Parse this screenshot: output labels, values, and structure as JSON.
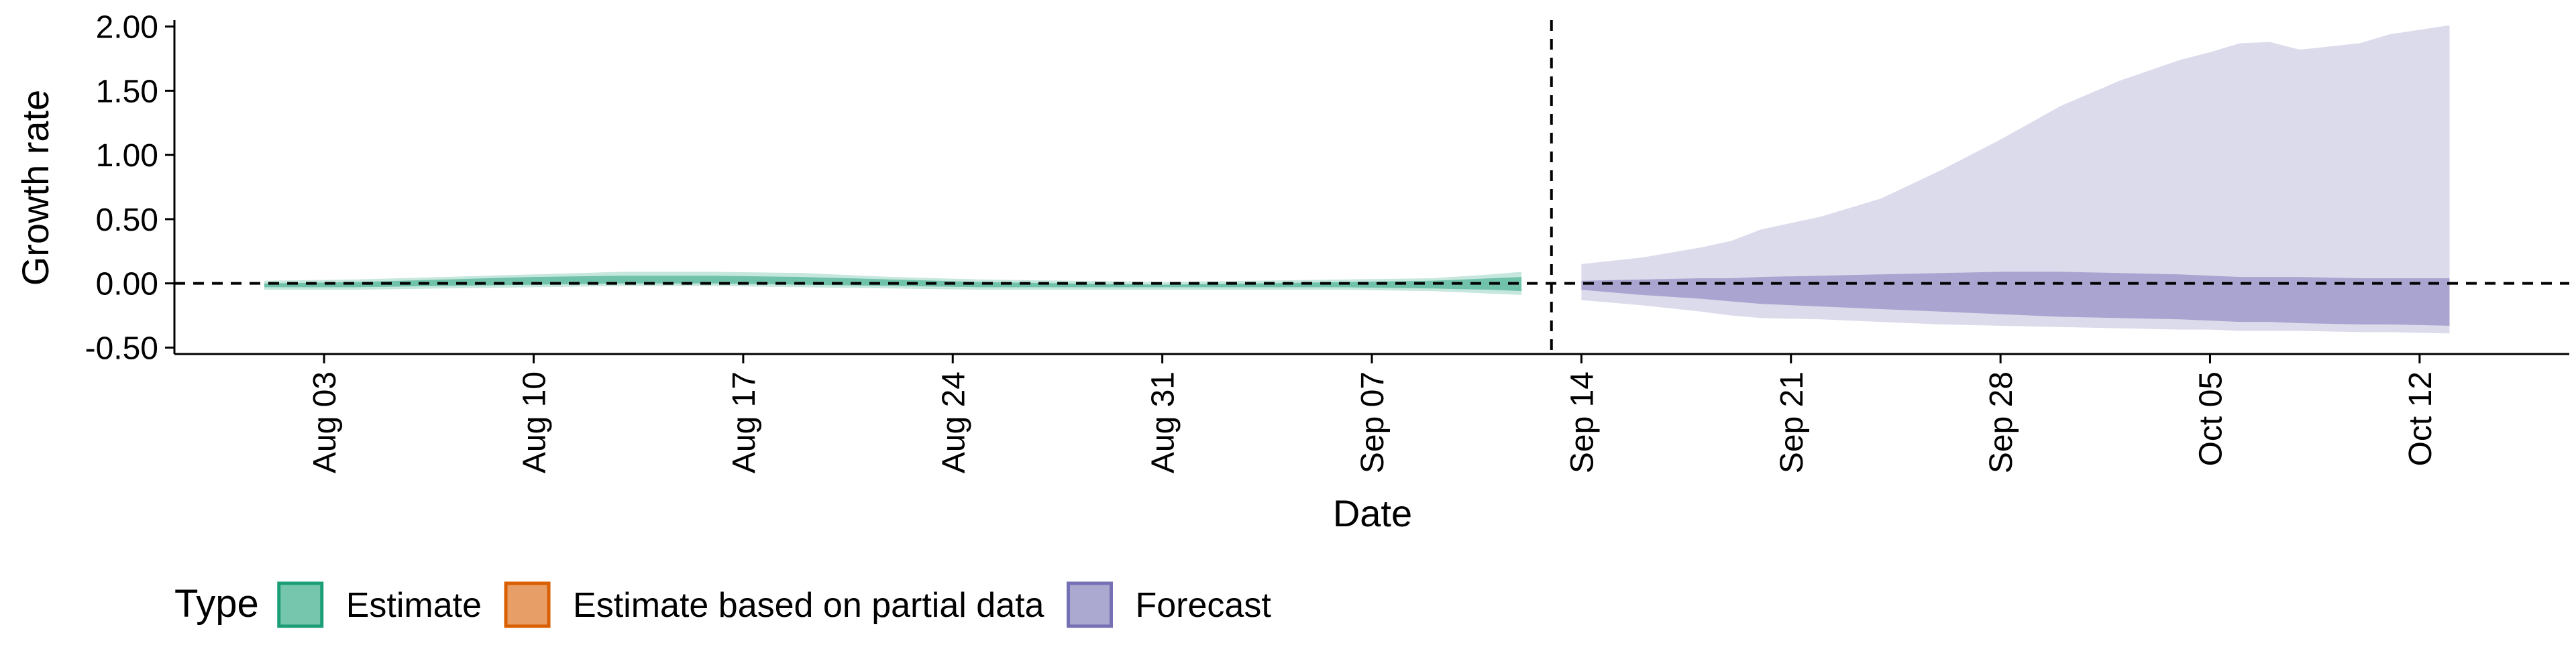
{
  "chart_data": {
    "type": "area",
    "xlabel": "Date",
    "ylabel": "Growth rate",
    "ylim": [
      -0.5,
      2.0
    ],
    "y_ticks": [
      -0.5,
      0.0,
      0.5,
      1.0,
      1.5,
      2.0
    ],
    "y_tick_labels": [
      "-0.50",
      "0.00",
      "0.50",
      "1.00",
      "1.50",
      "2.00"
    ],
    "x_range": [
      "2020-07-29",
      "2020-10-17"
    ],
    "x_ticks": [
      "2020-08-03",
      "2020-08-10",
      "2020-08-17",
      "2020-08-24",
      "2020-08-31",
      "2020-09-07",
      "2020-09-14",
      "2020-09-21",
      "2020-09-28",
      "2020-10-05",
      "2020-10-12"
    ],
    "x_tick_labels": [
      "Aug 03",
      "Aug 10",
      "Aug 17",
      "Aug 24",
      "Aug 31",
      "Sep 07",
      "Sep 14",
      "Sep 21",
      "Sep 28",
      "Oct 05",
      "Oct 12"
    ],
    "reference_lines": {
      "horizontal_y": 0.0,
      "vertical_date": "2020-09-13",
      "style": "dashed"
    },
    "grid": false,
    "legend": {
      "title": "Type",
      "position": "bottom",
      "items": [
        {
          "label": "Estimate",
          "fill": "#1b9e77",
          "border": "#1b9e77"
        },
        {
          "label": "Estimate based on partial data",
          "fill": "#d95f02",
          "border": "#d95f02"
        },
        {
          "label": "Forecast",
          "fill": "#7570b3",
          "border": "#7570b3"
        }
      ]
    },
    "series": [
      {
        "name": "Estimate",
        "color": "#1b9e77",
        "x": [
          "2020-08-01",
          "2020-08-04",
          "2020-08-07",
          "2020-08-10",
          "2020-08-13",
          "2020-08-16",
          "2020-08-19",
          "2020-08-22",
          "2020-08-25",
          "2020-08-28",
          "2020-08-31",
          "2020-09-03",
          "2020-09-06",
          "2020-09-09",
          "2020-09-11",
          "2020-09-12"
        ],
        "outer_lower": [
          -0.05,
          -0.05,
          -0.04,
          -0.03,
          -0.02,
          -0.02,
          -0.03,
          -0.04,
          -0.05,
          -0.05,
          -0.05,
          -0.05,
          -0.05,
          -0.06,
          -0.08,
          -0.09
        ],
        "outer_upper": [
          0.02,
          0.03,
          0.05,
          0.07,
          0.09,
          0.09,
          0.08,
          0.05,
          0.03,
          0.02,
          0.01,
          0.02,
          0.03,
          0.04,
          0.07,
          0.09
        ],
        "inner_lower": [
          -0.03,
          -0.03,
          -0.02,
          -0.01,
          0.0,
          0.0,
          -0.01,
          -0.02,
          -0.03,
          -0.03,
          -0.03,
          -0.03,
          -0.03,
          -0.04,
          -0.05,
          -0.06
        ],
        "inner_upper": [
          0.0,
          0.01,
          0.03,
          0.05,
          0.06,
          0.06,
          0.05,
          0.03,
          0.01,
          0.0,
          -0.01,
          0.0,
          0.01,
          0.02,
          0.04,
          0.05
        ]
      },
      {
        "name": "Forecast",
        "color": "#7570b3",
        "x": [
          "2020-09-14",
          "2020-09-16",
          "2020-09-18",
          "2020-09-19",
          "2020-09-20",
          "2020-09-22",
          "2020-09-24",
          "2020-09-26",
          "2020-09-28",
          "2020-09-30",
          "2020-10-02",
          "2020-10-04",
          "2020-10-05",
          "2020-10-06",
          "2020-10-07",
          "2020-10-08",
          "2020-10-10",
          "2020-10-11",
          "2020-10-13"
        ],
        "outer_lower": [
          -0.13,
          -0.17,
          -0.22,
          -0.25,
          -0.27,
          -0.28,
          -0.3,
          -0.32,
          -0.33,
          -0.34,
          -0.35,
          -0.36,
          -0.36,
          -0.37,
          -0.37,
          -0.37,
          -0.38,
          -0.38,
          -0.39
        ],
        "outer_upper": [
          0.15,
          0.2,
          0.28,
          0.33,
          0.42,
          0.52,
          0.66,
          0.88,
          1.12,
          1.38,
          1.58,
          1.74,
          1.8,
          1.87,
          1.88,
          1.82,
          1.87,
          1.94,
          2.01
        ],
        "inner_lower": [
          -0.05,
          -0.09,
          -0.12,
          -0.14,
          -0.16,
          -0.18,
          -0.2,
          -0.22,
          -0.24,
          -0.26,
          -0.27,
          -0.28,
          -0.29,
          -0.3,
          -0.3,
          -0.31,
          -0.32,
          -0.32,
          -0.33
        ],
        "inner_upper": [
          0.02,
          0.03,
          0.04,
          0.04,
          0.05,
          0.06,
          0.07,
          0.08,
          0.09,
          0.09,
          0.08,
          0.07,
          0.06,
          0.05,
          0.05,
          0.05,
          0.04,
          0.04,
          0.04
        ]
      }
    ]
  }
}
